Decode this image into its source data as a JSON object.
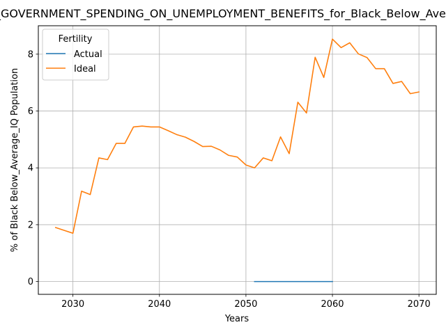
{
  "chart_data": {
    "type": "line",
    "title": "in_GOVERNMENT_SPENDING_ON_UNEMPLOYMENT_BENEFITS_for_Black_Below_Average_IQ",
    "xlabel": "Years",
    "ylabel": "% of Black Below_Average_IQ Population",
    "xlim": [
      2026,
      2072
    ],
    "ylim": [
      -0.45,
      9.0
    ],
    "x_ticks": [
      2030,
      2040,
      2050,
      2060,
      2070
    ],
    "y_ticks": [
      0,
      2,
      4,
      6,
      8
    ],
    "grid": true,
    "legend": {
      "title": "Fertility",
      "placement": "top-left"
    },
    "series": [
      {
        "name": "Actual",
        "color": "#1f77b4",
        "x": [
          2051,
          2052,
          2053,
          2054,
          2055,
          2056,
          2057,
          2058,
          2059,
          2060
        ],
        "values": [
          0,
          0,
          0,
          0,
          0,
          0,
          0,
          0,
          0,
          0
        ]
      },
      {
        "name": "Ideal",
        "color": "#ff7f0e",
        "x": [
          2028,
          2029,
          2030,
          2031,
          2032,
          2033,
          2034,
          2035,
          2036,
          2037,
          2038,
          2039,
          2040,
          2041,
          2042,
          2043,
          2044,
          2045,
          2046,
          2047,
          2048,
          2049,
          2050,
          2051,
          2052,
          2053,
          2054,
          2055,
          2056,
          2057,
          2058,
          2059,
          2060,
          2061,
          2062,
          2063,
          2064,
          2065,
          2066,
          2067,
          2068,
          2069,
          2070
        ],
        "values": [
          1.9,
          1.8,
          1.7,
          3.18,
          3.06,
          4.35,
          4.29,
          4.86,
          4.86,
          5.44,
          5.47,
          5.44,
          5.44,
          5.31,
          5.17,
          5.08,
          4.93,
          4.75,
          4.76,
          4.63,
          4.44,
          4.38,
          4.1,
          4.0,
          4.35,
          4.25,
          5.09,
          4.5,
          6.31,
          5.93,
          7.89,
          7.18,
          8.53,
          8.23,
          8.4,
          8.01,
          7.88,
          7.49,
          7.49,
          6.97,
          7.04,
          6.61,
          6.67
        ]
      }
    ]
  }
}
